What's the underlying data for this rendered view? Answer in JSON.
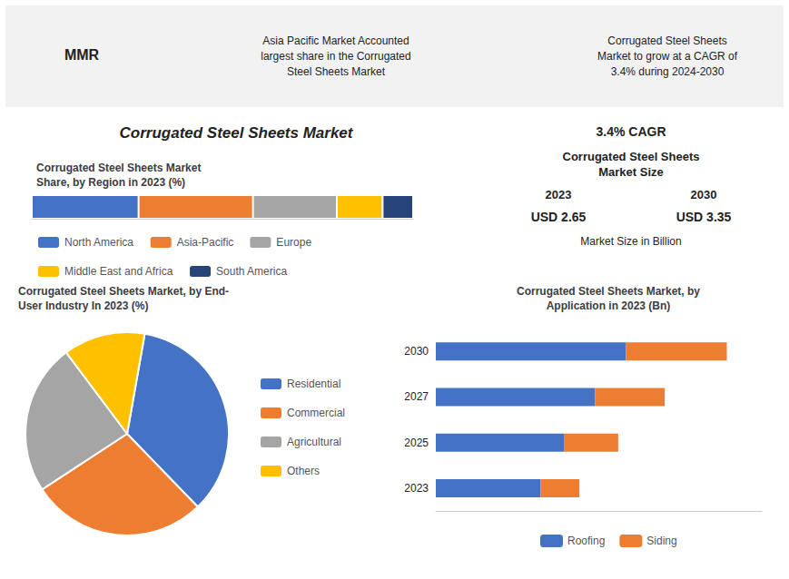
{
  "chart_data": [
    {
      "type": "bar",
      "orientation": "horizontal",
      "stacked": true,
      "title": "Corrugated Steel Sheets Market\nShare, by Region in 2023 (%)",
      "annotations": [
        "MMR",
        "Asia Pacific Market Accounted\nlargest share in the Corrugated\nSteel Sheets Market",
        "Corrugated Steel Sheets\nMarket to grow at a CAGR of\n3.4% during 2024-2030",
        "Corrugated Steel Sheets Market",
        "3.4% CAGR",
        "Corrugated Steel Sheets\nMarket Size",
        "2023",
        "2030",
        "USD 2.65",
        "USD 3.35",
        "Market Size in Billion"
      ],
      "categories": [
        null
      ],
      "series": [
        {
          "name": "North America",
          "color": "#4472c4",
          "values": [
            28
          ]
        },
        {
          "name": "Asia-Pacific",
          "color": "#ed7d31",
          "values": [
            30
          ]
        },
        {
          "name": "Europe",
          "color": "#a5a5a5",
          "values": [
            22
          ]
        },
        {
          "name": "Middle East and Africa",
          "color": "#ffc000",
          "values": [
            12
          ]
        },
        {
          "name": "South America",
          "color": "#264478",
          "values": [
            8
          ]
        }
      ],
      "xlim": [
        0,
        100
      ],
      "tick_labels": false,
      "grid": false,
      "legend": "bottom"
    },
    {
      "type": "pie",
      "title": "Corrugated Steel Sheets Market, by End-\nUser Industry In 2023 (%)",
      "categories": [
        "Residential",
        "Commercial",
        "Agricultural",
        "Others"
      ],
      "values": [
        35,
        28,
        24,
        13
      ],
      "colors": [
        "#4472c4",
        "#ed7d31",
        "#a5a5a5",
        "#ffc000"
      ],
      "data_labels": false,
      "legend": "right"
    },
    {
      "type": "bar",
      "orientation": "horizontal",
      "stacked": true,
      "title": "Corrugated Steel Sheets Market, by\nApplication in 2023 (Bn)",
      "categories": [
        "2023",
        "2025",
        "2027",
        "2030"
      ],
      "series": [
        {
          "name": "Roofing",
          "color": "#4472c4",
          "values": [
            1.35,
            1.65,
            2.05,
            2.45
          ]
        },
        {
          "name": "Siding",
          "color": "#ed7d31",
          "values": [
            0.5,
            0.7,
            0.9,
            1.3
          ]
        }
      ],
      "xlim": [
        0,
        4.2
      ],
      "tick_labels": "y",
      "grid": false,
      "legend": "bottom"
    }
  ]
}
